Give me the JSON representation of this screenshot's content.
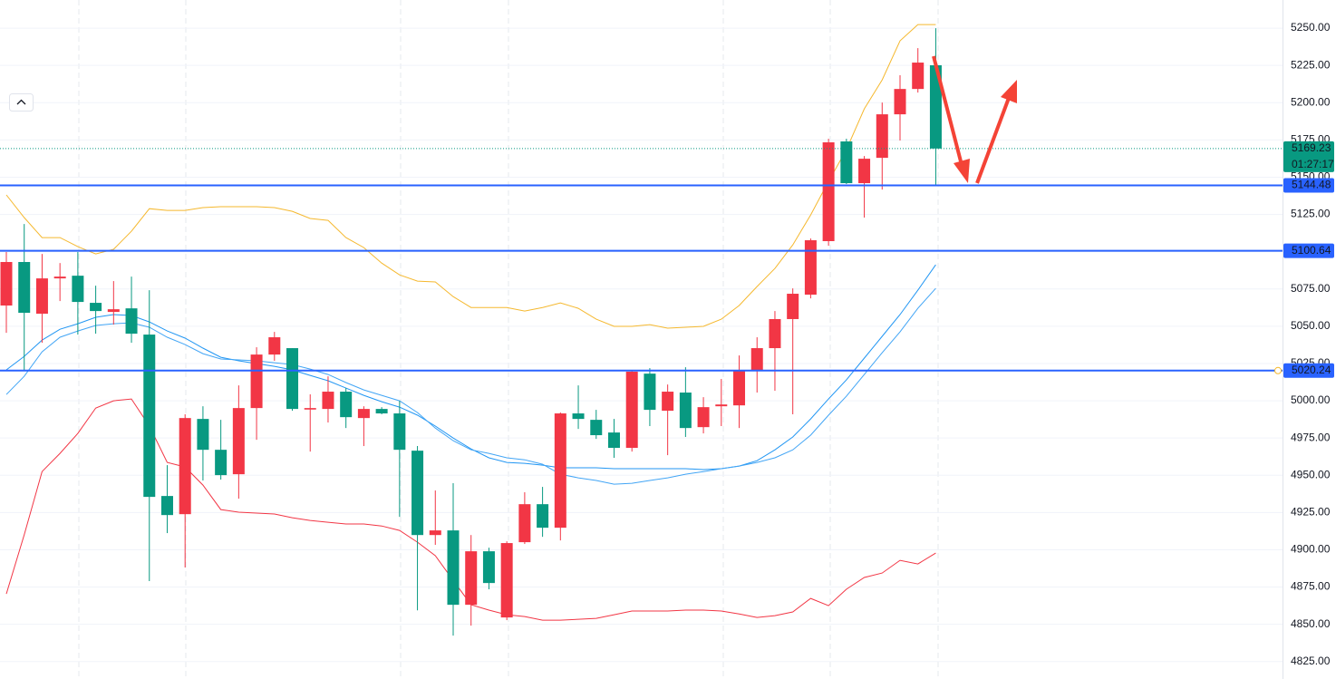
{
  "chart_data": {
    "type": "candlestick",
    "ylim": [
      4813.3,
      5268.9
    ],
    "yticks": [
      {
        "value": 4825,
        "label": "4825.00"
      },
      {
        "value": 4850,
        "label": "4850.00"
      },
      {
        "value": 4875,
        "label": "4875.00"
      },
      {
        "value": 4900,
        "label": "4900.00"
      },
      {
        "value": 4925,
        "label": "4925.00"
      },
      {
        "value": 4950,
        "label": "4950.00"
      },
      {
        "value": 4975,
        "label": "4975.00"
      },
      {
        "value": 5000,
        "label": "5000.00"
      },
      {
        "value": 5025,
        "label": "5025.00"
      },
      {
        "value": 5050,
        "label": "5050.00"
      },
      {
        "value": 5075,
        "label": "5075.00"
      },
      {
        "value": 5100,
        "label": "5100.00"
      },
      {
        "value": 5125,
        "label": "5125.00"
      },
      {
        "value": 5150,
        "label": "5150.00"
      },
      {
        "value": 5175,
        "label": "5175.00"
      },
      {
        "value": 5200,
        "label": "5200.00"
      },
      {
        "value": 5225,
        "label": "5225.00"
      },
      {
        "value": 5250,
        "label": "5250.00"
      }
    ],
    "grid": true,
    "up_color": "#f23645",
    "down_color": "#089981",
    "open": [
      5063.9,
      5093.1,
      5058.4,
      5082.1,
      5083.9,
      5065.7,
      5059.6,
      5062.0,
      5044.4,
      4936.1,
      4923.9,
      4987.8,
      4967.1,
      4950.7,
      4995.1,
      5031.0,
      5035.3,
      4994.1,
      4994.5,
      5006.1,
      4988.4,
      4994.5,
      4991.5,
      4966.5,
      4909.9,
      4913.0,
      4863.1,
      4899.0,
      4854.6,
      4905.1,
      4930.6,
      4914.8,
      4991.5,
      4987.2,
      4978.7,
      4968.4,
      5018.2,
      4993.3,
      5005.5,
      4982.3,
      4996.3,
      4996.9,
      5020.7,
      5035.3,
      5054.8,
      5071.2,
      5107.1,
      5174.0,
      5146.0,
      5163.0,
      5192.2,
      5209.2,
      5225.1
    ],
    "high": [
      5099.8,
      5118.6,
      5098.5,
      5092.4,
      5099.8,
      5077.2,
      5080.3,
      5083.3,
      5074.2,
      4956.8,
      4990.9,
      4996.3,
      4987.2,
      5010.3,
      5035.9,
      5046.2,
      5035.3,
      5004.3,
      5016.4,
      5008.5,
      4996.3,
      4995.7,
      5000.0,
      4969.6,
      4939.8,
      4944.7,
      4909.9,
      4901.4,
      4905.7,
      4938.6,
      4942.2,
      4992.1,
      5010.3,
      4993.9,
      4987.8,
      5020.7,
      5021.9,
      5010.9,
      5022.5,
      5002.4,
      5014.6,
      5030.4,
      5042.6,
      5060.2,
      5075.4,
      5108.9,
      5175.8,
      5175.8,
      5164.2,
      5200.1,
      5218.4,
      5236.6,
      5250.0
    ],
    "low": [
      5045.6,
      5020.7,
      5038.9,
      5066.9,
      5044.4,
      5045.0,
      5051.1,
      5038.9,
      4879.0,
      4911.2,
      4888.1,
      4946.5,
      4947.1,
      4934.3,
      4973.8,
      5026.8,
      4993.3,
      4965.9,
      4985.4,
      4981.7,
      4969.6,
      4990.9,
      4922.1,
      4859.4,
      4903.3,
      4842.4,
      4849.1,
      4873.5,
      4852.8,
      4903.9,
      4908.7,
      4906.3,
      4981.1,
      4974.4,
      4961.7,
      4965.9,
      4983.0,
      4963.5,
      4975.7,
      4978.1,
      4983.0,
      4981.7,
      5005.5,
      5006.7,
      4990.9,
      5068.7,
      5104.0,
      5145.4,
      5122.9,
      5141.7,
      5174.6,
      5206.8,
      5144.8
    ],
    "close": [
      5093.1,
      5059.0,
      5082.1,
      5083.3,
      5066.3,
      5060.2,
      5061.4,
      5045.0,
      4935.5,
      4923.3,
      4988.4,
      4967.1,
      4950.1,
      4995.1,
      5031.0,
      5042.6,
      4994.5,
      4995.1,
      5006.1,
      4989.0,
      4994.5,
      4991.5,
      4967.1,
      4909.9,
      4913.0,
      4863.1,
      4899.0,
      4877.7,
      4904.5,
      4930.6,
      4914.8,
      4991.5,
      4987.8,
      4976.9,
      4968.4,
      5019.5,
      4993.9,
      5006.1,
      4981.7,
      4995.7,
      4997.5,
      5020.1,
      5035.3,
      5054.8,
      5071.8,
      5107.7,
      5173.4,
      5146.0,
      5162.4,
      5192.2,
      5209.2,
      5226.9,
      5169.23
    ],
    "lines": [
      {
        "color": "#f5b82e",
        "values": [
          5138.1,
          5122.9,
          5109.5,
          5109.5,
          5103.4,
          5098.5,
          5101.6,
          5113.7,
          5128.9,
          5127.7,
          5127.7,
          5129.6,
          5130.2,
          5130.2,
          5130.2,
          5129.6,
          5127.1,
          5122.3,
          5121.0,
          5109.5,
          5102.8,
          5092.4,
          5084.5,
          5080.3,
          5079.7,
          5069.9,
          5062.6,
          5062.6,
          5062.6,
          5060.2,
          5062.6,
          5065.7,
          5062.0,
          5054.7,
          5049.9,
          5049.9,
          5051.1,
          5048.7,
          5049.3,
          5049.9,
          5054.7,
          5063.9,
          5076.6,
          5088.8,
          5104.6,
          5124.7,
          5147.2,
          5168.5,
          5195.9,
          5215.3,
          5241.5,
          5252.4,
          5252.4
        ]
      },
      {
        "color": "#f23645",
        "values": [
          4870.4,
          4910.0,
          4952.5,
          4964.7,
          4978.1,
          4995.1,
          5000.0,
          5001.2,
          4983.0,
          4958.6,
          4955.6,
          4943.4,
          4927.0,
          4925.2,
          4924.6,
          4924.0,
          4921.5,
          4919.7,
          4918.5,
          4917.3,
          4917.3,
          4916.0,
          4913.0,
          4905.1,
          4896.0,
          4879.5,
          4863.1,
          4859.5,
          4856.4,
          4855.2,
          4852.8,
          4852.8,
          4853.4,
          4854.0,
          4856.4,
          4858.9,
          4858.9,
          4858.9,
          4859.5,
          4859.5,
          4858.9,
          4857.0,
          4854.6,
          4855.8,
          4858.3,
          4867.4,
          4862.5,
          4873.5,
          4881.4,
          4884.4,
          4892.9,
          4890.5,
          4897.8
        ]
      },
      {
        "color": "#2196f3",
        "values": [
          5020.7,
          5029.8,
          5040.7,
          5048.0,
          5051.7,
          5056.0,
          5057.8,
          5057.2,
          5052.9,
          5046.8,
          5042.0,
          5035.3,
          5029.2,
          5026.8,
          5024.9,
          5023.1,
          5020.7,
          5017.0,
          5013.4,
          5008.5,
          5003.6,
          4999.4,
          4995.7,
          4990.3,
          4983.0,
          4975.0,
          4967.7,
          4961.7,
          4958.6,
          4958.0,
          4956.8,
          4955.0,
          4955.0,
          4955.0,
          4954.4,
          4954.4,
          4954.4,
          4954.4,
          4954.4,
          4953.8,
          4954.4,
          4956.2,
          4959.8,
          4967.1,
          4975.7,
          4987.8,
          5001.2,
          5014.0,
          5028.6,
          5043.2,
          5057.8,
          5074.2,
          5091.2
        ]
      },
      {
        "color": "#42a5f5",
        "values": [
          5004.2,
          5016.4,
          5032.8,
          5042.6,
          5046.8,
          5050.5,
          5051.7,
          5052.3,
          5049.3,
          5042.6,
          5037.7,
          5031.6,
          5028.0,
          5027.4,
          5026.8,
          5025.5,
          5024.3,
          5021.3,
          5017.6,
          5012.2,
          5007.3,
          5003.6,
          5000.0,
          4992.1,
          4981.7,
          4973.2,
          4967.1,
          4964.7,
          4961.7,
          4960.4,
          4957.4,
          4950.7,
          4948.3,
          4946.5,
          4944.0,
          4944.6,
          4946.5,
          4948.3,
          4950.7,
          4952.5,
          4954.4,
          4956.2,
          4958.6,
          4961.7,
          4967.1,
          4976.9,
          4990.3,
          5003.0,
          5017.6,
          5032.2,
          5046.2,
          5062.0,
          5075.4
        ]
      }
    ],
    "hlines": [
      {
        "value": 5144.48,
        "color": "#2962ff"
      },
      {
        "value": 5100.64,
        "color": "#2962ff"
      },
      {
        "value": 5020.24,
        "color": "#2962ff"
      }
    ],
    "last_price": 5169.23,
    "countdown": "01:27:17"
  }
}
